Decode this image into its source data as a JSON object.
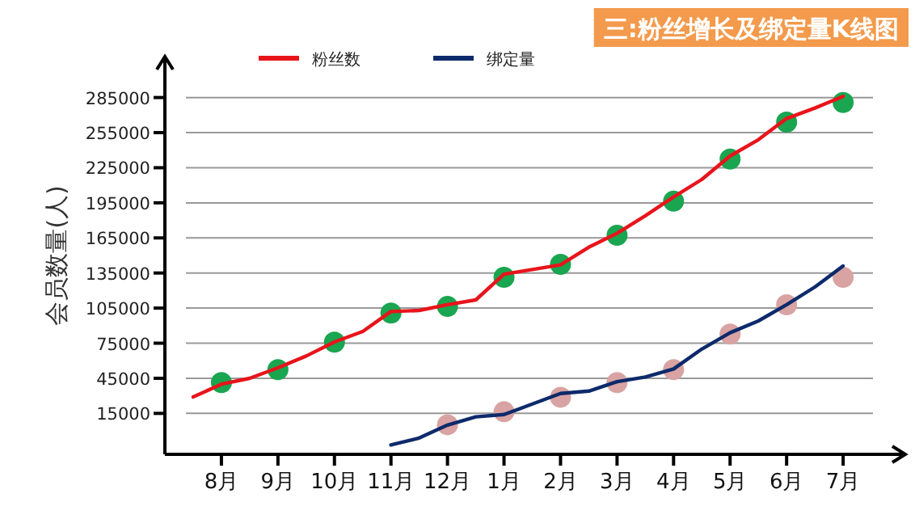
{
  "chart_data": {
    "type": "line",
    "title": "三:粉丝增长及绑定量K线图",
    "ylabel": "会员数量(人)",
    "categories": [
      null,
      "8月",
      null,
      "9月",
      null,
      "10月",
      null,
      "11月",
      null,
      "12月",
      null,
      "1月",
      null,
      "2月",
      null,
      "3月",
      null,
      "4月",
      null,
      "5月",
      null,
      "6月",
      null,
      "7月"
    ],
    "ylim": [
      -20000,
      320000
    ],
    "yticks": [
      15000,
      45000,
      75000,
      105000,
      135000,
      165000,
      195000,
      225000,
      255000,
      285000
    ],
    "grid": "y",
    "legend": "top left",
    "series": [
      {
        "type": "scatter",
        "color": "#1aa550",
        "marker": "circle",
        "values": [
          null,
          41300,
          null,
          52400,
          null,
          75900,
          null,
          100800,
          null,
          106400,
          null,
          131300,
          null,
          142400,
          null,
          167300,
          null,
          196400,
          null,
          232400,
          null,
          264000,
          null,
          280800
        ]
      },
      {
        "type": "scatter",
        "color": "#d9a3a3",
        "marker": "circle",
        "values": [
          null,
          null,
          null,
          null,
          null,
          null,
          null,
          null,
          null,
          5300,
          null,
          16400,
          null,
          28800,
          null,
          41300,
          null,
          52400,
          null,
          82800,
          null,
          107800,
          null,
          131300
        ]
      },
      {
        "type": "line",
        "name": "粉丝数",
        "color": "#e8141b",
        "values": [
          29000,
          40000,
          45000,
          54000,
          64000,
          76000,
          85000,
          102000,
          103000,
          108000,
          112000,
          134000,
          138000,
          142000,
          157000,
          169000,
          184000,
          200000,
          215000,
          235000,
          249000,
          267000,
          276000,
          286000
        ]
      },
      {
        "type": "line",
        "name": "绑定量",
        "color": "#0d2a6b",
        "values": [
          null,
          null,
          null,
          null,
          null,
          null,
          null,
          -12000,
          -6000,
          5000,
          12000,
          14000,
          23000,
          32000,
          34000,
          42000,
          46000,
          53000,
          70000,
          84000,
          94000,
          108000,
          123000,
          141000
        ]
      }
    ]
  }
}
